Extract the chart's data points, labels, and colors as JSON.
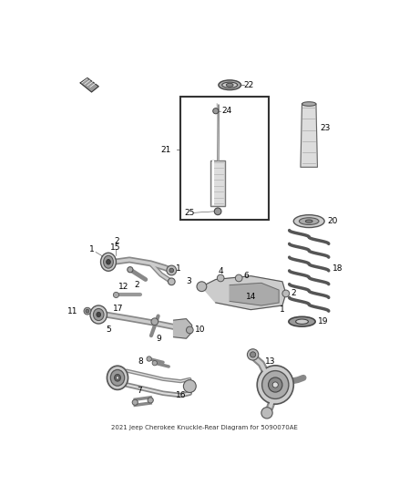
{
  "background_color": "#ffffff",
  "figure_width": 4.38,
  "figure_height": 5.33,
  "dpi": 100,
  "text_color": "#000000",
  "label_fontsize": 6.5,
  "part_color": "#888888",
  "edge_color": "#444444",
  "light_gray": "#cccccc",
  "dark_gray": "#666666"
}
